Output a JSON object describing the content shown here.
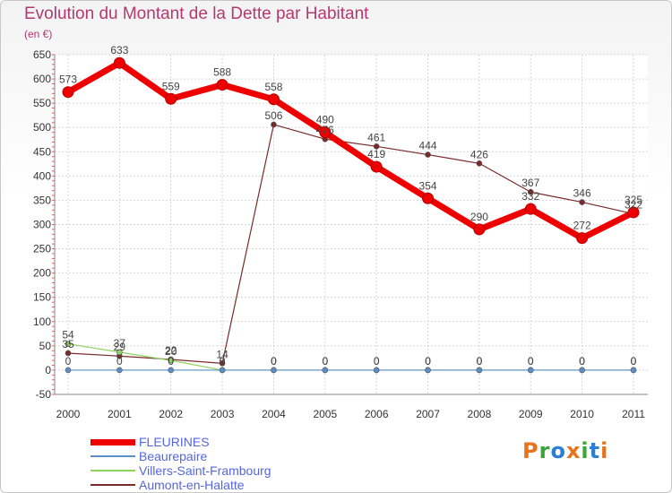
{
  "title": "Evolution du Montant de la Dette par Habitant",
  "unit_label": "(en €)",
  "brand": "Proxiti",
  "chart_data": {
    "type": "line",
    "x": [
      "2000",
      "2001",
      "2002",
      "2003",
      "2004",
      "2005",
      "2006",
      "2007",
      "2008",
      "2009",
      "2010",
      "2011"
    ],
    "ylim": [
      -50,
      650
    ],
    "yticks": [
      -50,
      0,
      50,
      100,
      150,
      200,
      250,
      300,
      350,
      400,
      450,
      500,
      550,
      600,
      650
    ],
    "grid": true,
    "legend_position": "bottom-left",
    "series": [
      {
        "name": "FLEURINES",
        "color": "#ee0000",
        "values": [
          573,
          633,
          559,
          588,
          558,
          490,
          419,
          354,
          290,
          332,
          272,
          325
        ],
        "labels": [
          573,
          633,
          559,
          588,
          558,
          490,
          419,
          354,
          290,
          332,
          272,
          325
        ]
      },
      {
        "name": "Beaurepaire",
        "color": "#5b8fc8",
        "values": [
          0,
          0,
          0,
          0,
          0,
          0,
          0,
          0,
          0,
          0,
          0,
          0
        ],
        "labels": [
          0,
          0,
          0,
          0,
          0,
          0,
          0,
          0,
          0,
          0,
          0,
          0
        ]
      },
      {
        "name": "Villers-Saint-Frambourg",
        "color": "#8fd35f",
        "values": [
          54,
          37,
          20,
          0,
          0,
          0,
          0,
          0,
          0,
          0,
          0,
          0
        ],
        "labels": [
          54,
          37,
          20,
          0,
          0,
          0,
          0,
          0,
          0,
          0,
          0,
          0
        ]
      },
      {
        "name": "Aumont-en-Halatte",
        "color": "#7a2a2a",
        "values": [
          35,
          29,
          22,
          14,
          506,
          476,
          461,
          444,
          426,
          367,
          346,
          322
        ],
        "labels": [
          35,
          29,
          22,
          14,
          506,
          476,
          461,
          444,
          426,
          367,
          346,
          322
        ]
      }
    ]
  }
}
